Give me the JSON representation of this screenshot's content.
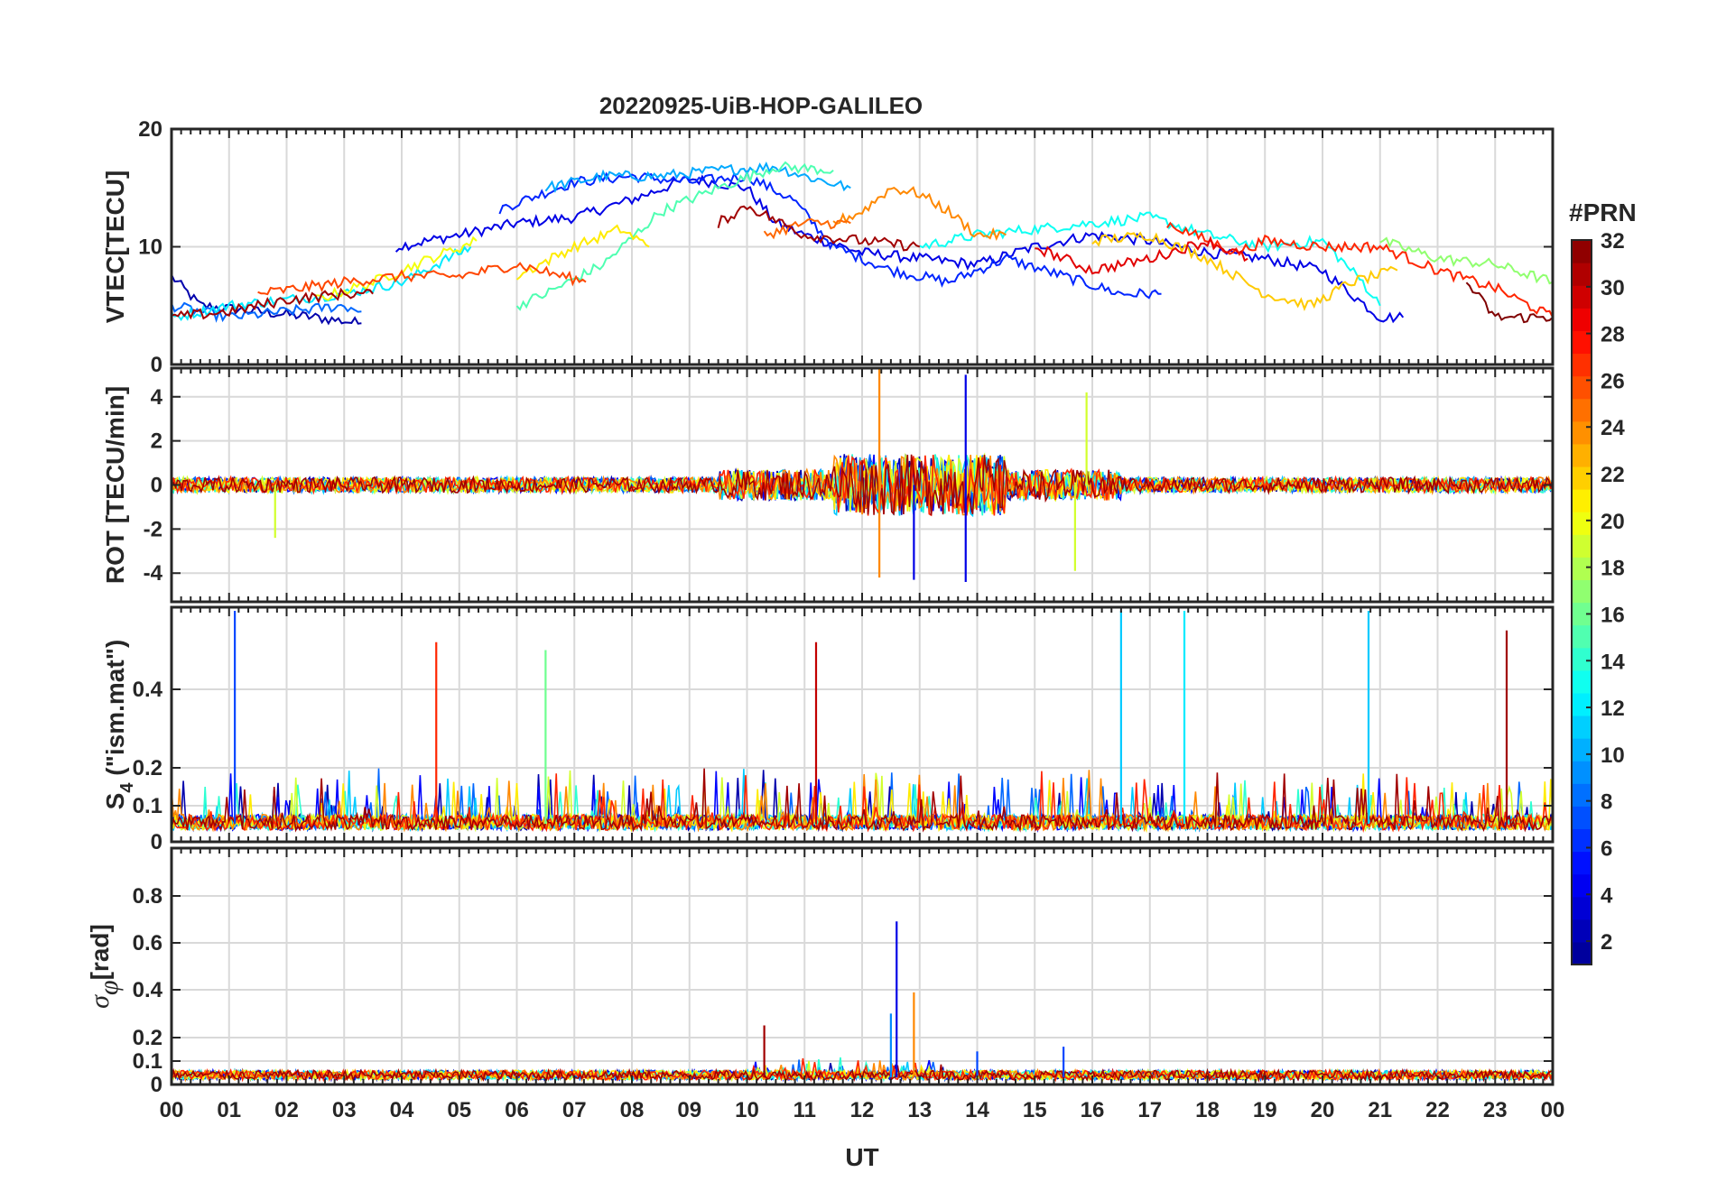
{
  "chart_data": {
    "type": "line",
    "title": "20220925-UiB-HOP-GALILEO",
    "xlabel": "UT",
    "x_unit": "hours",
    "xlim": [
      0,
      24
    ],
    "xticks": [
      "00",
      "01",
      "02",
      "03",
      "04",
      "05",
      "06",
      "07",
      "08",
      "09",
      "10",
      "11",
      "12",
      "13",
      "14",
      "15",
      "16",
      "17",
      "18",
      "19",
      "20",
      "21",
      "22",
      "23",
      "00"
    ],
    "colorbar": {
      "label": "#PRN",
      "range": [
        1,
        32
      ],
      "ticks": [
        "2",
        "4",
        "6",
        "8",
        "10",
        "12",
        "14",
        "16",
        "18",
        "20",
        "22",
        "24",
        "26",
        "28",
        "30",
        "32"
      ],
      "colormap": "jet",
      "colors": [
        "#00008f",
        "#0000ff",
        "#0080ff",
        "#00ffff",
        "#80ff80",
        "#ffff00",
        "#ff8000",
        "#ff0000",
        "#800000"
      ]
    },
    "panels": [
      {
        "name": "vtec",
        "ylabel": "VTEC[TECU]",
        "ylim": [
          0,
          20
        ],
        "yticks": [
          "0",
          "10",
          "20"
        ],
        "grid": true,
        "series_note": "one trace per Galileo PRN, vertical TEC roughly 3-17 TECU",
        "series": [
          {
            "prn": 2,
            "points": [
              [
                0.0,
                7.5
              ],
              [
                0.5,
                5
              ],
              [
                1.5,
                4.5
              ],
              [
                2.5,
                4
              ],
              [
                3.3,
                3.5
              ]
            ]
          },
          {
            "prn": 4,
            "points": [
              [
                3.9,
                10
              ],
              [
                5,
                11
              ],
              [
                6,
                12
              ],
              [
                7,
                12.5
              ],
              [
                8,
                14
              ],
              [
                9,
                15.8
              ],
              [
                10,
                15
              ],
              [
                10.5,
                12
              ],
              [
                11,
                11
              ],
              [
                12,
                9.5
              ],
              [
                13,
                9
              ],
              [
                14,
                8.5
              ],
              [
                15,
                10
              ],
              [
                16,
                11
              ],
              [
                17,
                10.5
              ],
              [
                18,
                9.5
              ],
              [
                19,
                9
              ],
              [
                20,
                8
              ],
              [
                21,
                4
              ],
              [
                21.4,
                4
              ]
            ]
          },
          {
            "prn": 6,
            "points": [
              [
                5.7,
                13.2
              ],
              [
                7,
                15.5
              ],
              [
                8,
                16
              ],
              [
                9,
                15.5
              ],
              [
                10,
                16
              ],
              [
                10.8,
                14
              ],
              [
                11.5,
                10
              ],
              [
                12.5,
                8
              ],
              [
                13.5,
                7
              ],
              [
                14.5,
                9
              ],
              [
                15.5,
                7.5
              ],
              [
                16.5,
                6
              ],
              [
                17.2,
                6
              ]
            ]
          },
          {
            "prn": 8,
            "points": [
              [
                0.0,
                5
              ],
              [
                1,
                4
              ],
              [
                2,
                4.5
              ],
              [
                3,
                5
              ],
              [
                3.3,
                4.5
              ]
            ]
          },
          {
            "prn": 10,
            "points": [
              [
                6.5,
                15
              ],
              [
                7.5,
                16
              ],
              [
                8.5,
                16
              ],
              [
                9.5,
                16.5
              ],
              [
                10.5,
                16.8
              ],
              [
                11,
                16
              ],
              [
                11.8,
                15
              ]
            ]
          },
          {
            "prn": 12,
            "points": [
              [
                0.0,
                4
              ],
              [
                1,
                5
              ],
              [
                2,
                5.5
              ],
              [
                3,
                6
              ],
              [
                4,
                7
              ],
              [
                4.6,
                8.5
              ],
              [
                5.2,
                10
              ]
            ]
          },
          {
            "prn": 13,
            "points": [
              [
                13,
                10
              ],
              [
                14,
                11
              ],
              [
                15,
                11.5
              ],
              [
                16,
                12
              ],
              [
                17,
                12.5
              ],
              [
                18,
                11
              ],
              [
                19,
                10
              ],
              [
                20,
                10.5
              ],
              [
                20.7,
                7
              ],
              [
                21,
                5
              ]
            ]
          },
          {
            "prn": 15,
            "points": [
              [
                6,
                5
              ],
              [
                6.5,
                6
              ],
              [
                7.5,
                8.5
              ],
              [
                8.5,
                13
              ],
              [
                9.5,
                15
              ],
              [
                10.5,
                16.8
              ],
              [
                11.5,
                16.5
              ]
            ]
          },
          {
            "prn": 17,
            "points": [
              [
                21,
                10.5
              ],
              [
                22,
                9
              ],
              [
                23,
                8.5
              ],
              [
                24,
                7
              ]
            ]
          },
          {
            "prn": 20,
            "points": [
              [
                2.5,
                5.5
              ],
              [
                3.5,
                7
              ],
              [
                4.5,
                9
              ],
              [
                5.3,
                10.5
              ]
            ]
          },
          {
            "prn": 21,
            "points": [
              [
                6,
                7.5
              ],
              [
                7,
                10
              ],
              [
                7.8,
                11.5
              ],
              [
                8.3,
                10
              ]
            ]
          },
          {
            "prn": 22,
            "points": [
              [
                16,
                10.5
              ],
              [
                17,
                11
              ],
              [
                18,
                9
              ],
              [
                19,
                6
              ],
              [
                19.8,
                5
              ],
              [
                20.5,
                7
              ],
              [
                21.3,
                8
              ]
            ]
          },
          {
            "prn": 24,
            "points": [
              [
                11.5,
                12
              ],
              [
                12,
                13
              ],
              [
                12.5,
                15
              ],
              [
                13,
                14.5
              ],
              [
                13.5,
                13
              ],
              [
                14,
                11
              ],
              [
                14.5,
                11
              ]
            ]
          },
          {
            "prn": 25,
            "points": [
              [
                10.3,
                11
              ],
              [
                11,
                12
              ],
              [
                11.8,
                12
              ]
            ]
          },
          {
            "prn": 26,
            "points": [
              [
                1.5,
                6
              ],
              [
                3,
                7
              ],
              [
                4,
                7.5
              ],
              [
                5,
                7.5
              ],
              [
                6,
                8.5
              ],
              [
                6.8,
                7.5
              ],
              [
                7.2,
                7
              ]
            ]
          },
          {
            "prn": 27,
            "points": [
              [
                17.3,
                12
              ],
              [
                18.5,
                9.5
              ],
              [
                19,
                10.5
              ],
              [
                20,
                10
              ],
              [
                21,
                10
              ],
              [
                22,
                8
              ],
              [
                23,
                6.5
              ],
              [
                24,
                4
              ]
            ]
          },
          {
            "prn": 29,
            "points": [
              [
                15,
                10
              ],
              [
                16,
                8
              ],
              [
                17,
                9
              ],
              [
                18,
                10.5
              ],
              [
                18.7,
                9
              ]
            ]
          },
          {
            "prn": 31,
            "points": [
              [
                0.0,
                4
              ],
              [
                1,
                4.5
              ],
              [
                2,
                5.5
              ],
              [
                3,
                6
              ],
              [
                3.5,
                6
              ]
            ]
          },
          {
            "prn": 31,
            "points": [
              [
                9.5,
                12
              ],
              [
                10,
                13.5
              ],
              [
                11,
                11
              ],
              [
                12,
                10.5
              ],
              [
                13,
                10
              ]
            ]
          },
          {
            "prn": 32,
            "points": [
              [
                22.5,
                7
              ],
              [
                23,
                4
              ],
              [
                24,
                4
              ]
            ]
          }
        ]
      },
      {
        "name": "rot",
        "ylabel": "ROT [TECU/min]",
        "ylim": [
          -5.3,
          5.3
        ],
        "yticks": [
          "-4",
          "-2",
          "0",
          "2",
          "4"
        ],
        "grid": true,
        "series_note": "rate of TEC change fluctuating around 0; largest bursts ~12-14.5 UT reaching about +5 and -4.3 TECU/min",
        "peaks": [
          {
            "x": 12.3,
            "y": 5.3,
            "prn": 24
          },
          {
            "x": 12.3,
            "y": -4.2,
            "prn": 24
          },
          {
            "x": 12.9,
            "y": -4.3,
            "prn": 4
          },
          {
            "x": 13.8,
            "y": 5.0,
            "prn": 4
          },
          {
            "x": 13.8,
            "y": -4.4,
            "prn": 4
          },
          {
            "x": 15.9,
            "y": 4.2,
            "prn": 19
          },
          {
            "x": 15.7,
            "y": -3.9,
            "prn": 19
          },
          {
            "x": 1.8,
            "y": -2.4,
            "prn": 19
          }
        ]
      },
      {
        "name": "s4",
        "ylabel": "S4 (\"ism.mat\")",
        "ylabel_main": "S",
        "ylabel_sub": "4",
        "ylabel_rest": " (\"ism.mat\")",
        "ylim": [
          0,
          0.6
        ],
        "yticks": [
          "0",
          "0.1",
          "0.2",
          "0.4"
        ],
        "grid": true,
        "series_note": "amplitude scintillation index, baseline ~0.03-0.05 with bursts",
        "peaks": [
          {
            "x": 1.1,
            "y": 0.6,
            "prn": 7
          },
          {
            "x": 4.6,
            "y": 0.52,
            "prn": 27
          },
          {
            "x": 6.5,
            "y": 0.5,
            "prn": 16
          },
          {
            "x": 11.2,
            "y": 0.52,
            "prn": 30
          },
          {
            "x": 16.5,
            "y": 0.6,
            "prn": 11
          },
          {
            "x": 17.6,
            "y": 0.6,
            "prn": 12
          },
          {
            "x": 20.8,
            "y": 0.6,
            "prn": 11
          },
          {
            "x": 23.2,
            "y": 0.55,
            "prn": 31
          }
        ]
      },
      {
        "name": "sigma_phi",
        "ylabel": "σφ[rad]",
        "ylabel_main": "σ",
        "ylabel_sub": "φ",
        "ylabel_rest": "[rad]",
        "ylim": [
          0,
          1
        ],
        "yticks": [
          "0",
          "0.1",
          "0.2",
          "0.4",
          "0.6",
          "0.8"
        ],
        "grid": true,
        "series_note": "phase scintillation index, baseline ~0.02-0.06",
        "peaks": [
          {
            "x": 12.6,
            "y": 0.69,
            "prn": 4
          },
          {
            "x": 12.9,
            "y": 0.39,
            "prn": 24
          },
          {
            "x": 12.5,
            "y": 0.3,
            "prn": 9
          },
          {
            "x": 10.3,
            "y": 0.25,
            "prn": 31
          },
          {
            "x": 14.0,
            "y": 0.14,
            "prn": 7
          },
          {
            "x": 15.5,
            "y": 0.16,
            "prn": 7
          }
        ]
      }
    ]
  }
}
